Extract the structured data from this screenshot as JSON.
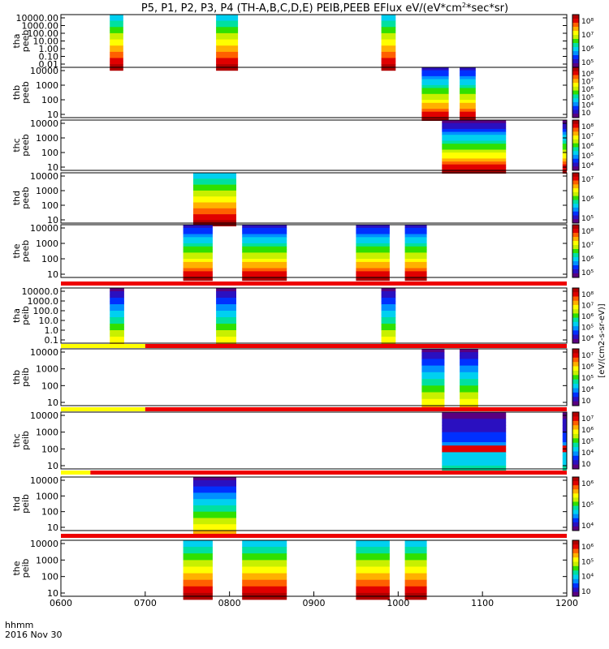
{
  "title": "P5, P1, P2, P3, P4 (TH-A,B,C,D,E) PEIB,PEEB EFlux eV/(eV*cm",
  "title_sup": "2",
  "title_tail": "*sec*sr)",
  "time_label_1": "hhmm",
  "time_label_2": "2016 Nov 30",
  "cbar_title": "[eV/(cm2-s-sr-eV)]",
  "colorscale": [
    "#5a0080",
    "#2a10c0",
    "#0030ff",
    "#0090ff",
    "#00d0f0",
    "#00e0a0",
    "#30e000",
    "#c8f000",
    "#ffff00",
    "#ffb000",
    "#ff6000",
    "#e00000",
    "#b00000"
  ],
  "chart_data": {
    "type": "heatmap",
    "x_ticks": [
      "0600",
      "0700",
      "0800",
      "0900",
      "1000",
      "1100",
      "1200"
    ],
    "x_range": [
      600,
      1200
    ],
    "panels": [
      {
        "label": "tha\npeeb",
        "yticks": [
          "10000.00",
          "1000.00",
          "100.00",
          "10.00",
          "1.00",
          "0.10",
          "0.01"
        ],
        "cticks": [
          "10⁸",
          "10⁷",
          "10⁶",
          "10⁵"
        ],
        "bar": null,
        "blocks": [
          [
            658,
            674
          ],
          [
            784,
            810
          ],
          [
            980,
            997
          ]
        ],
        "profile": "hot"
      },
      {
        "label": "thb\npeeb",
        "yticks": [
          "10000",
          "1000",
          "100",
          "10"
        ],
        "cticks": [
          "10⁸",
          "10⁷",
          "10⁶",
          "10⁵",
          "10⁴",
          "10⁳"
        ],
        "bar": null,
        "blocks": [
          [
            1028,
            1060
          ],
          [
            1073,
            1092
          ]
        ],
        "profile": "mixed"
      },
      {
        "label": "thc\npeeb",
        "yticks": [
          "10000",
          "1000",
          "100",
          "10"
        ],
        "cticks": [
          "10⁸",
          "10⁷",
          "10⁶",
          "10⁵",
          "10⁴"
        ],
        "bar": null,
        "blocks": [
          [
            1052,
            1128
          ],
          [
            1195,
            1200
          ]
        ],
        "profile": "dark"
      },
      {
        "label": "thd\npeeb",
        "yticks": [
          "10000",
          "1000",
          "100",
          "10"
        ],
        "cticks": [
          "10⁷",
          "10⁶",
          "10⁵"
        ],
        "bar": null,
        "blocks": [
          [
            757,
            808
          ]
        ],
        "profile": "hot"
      },
      {
        "label": "the\npeeb",
        "yticks": [
          "10000",
          "1000",
          "100",
          "10"
        ],
        "cticks": [
          "10⁸",
          "10⁷",
          "10⁶",
          "10⁵"
        ],
        "bar": null,
        "blocks": [
          [
            745,
            780
          ],
          [
            815,
            868
          ],
          [
            950,
            990
          ],
          [
            1008,
            1034
          ]
        ],
        "profile": "mixed"
      },
      {
        "label": "tha\npeib",
        "yticks": [
          "10000.0",
          "1000.0",
          "100.0",
          "10.0",
          "1.0",
          "0.1"
        ],
        "cticks": [
          "10⁸",
          "10⁷",
          "10⁶",
          "10⁵",
          "10⁴"
        ],
        "bar": "red",
        "blocks": [
          [
            658,
            675
          ],
          [
            784,
            808
          ],
          [
            980,
            997
          ]
        ],
        "profile": "cool"
      },
      {
        "label": "thb\npeib",
        "yticks": [
          "10000",
          "1000",
          "100",
          "10"
        ],
        "cticks": [
          "10⁷",
          "10⁶",
          "10⁵",
          "10⁴",
          "10⁳"
        ],
        "bar": "yellow-red",
        "blocks": [
          [
            1028,
            1055
          ],
          [
            1073,
            1095
          ]
        ],
        "profile": "cool"
      },
      {
        "label": "thc\npeib",
        "yticks": [
          "10000",
          "1000",
          "100",
          "10"
        ],
        "cticks": [
          "10⁷",
          "10⁶",
          "10⁵",
          "10⁴",
          "10⁳"
        ],
        "bar": "yellow-red",
        "blocks": [
          [
            1052,
            1128
          ],
          [
            1195,
            1200
          ]
        ],
        "profile": "band"
      },
      {
        "label": "thd\npeib",
        "yticks": [
          "10000",
          "1000",
          "100",
          "10"
        ],
        "cticks": [
          "10⁶",
          "10⁵",
          "10⁴"
        ],
        "bar": "yellow-red2",
        "blocks": [
          [
            757,
            808
          ]
        ],
        "profile": "cool"
      },
      {
        "label": "the\npeib",
        "yticks": [
          "10000",
          "1000",
          "100",
          "10"
        ],
        "cticks": [
          "10⁶",
          "10⁵",
          "10⁴",
          "10⁳"
        ],
        "bar": "red",
        "blocks": [
          [
            745,
            780
          ],
          [
            815,
            868
          ],
          [
            950,
            990
          ],
          [
            1008,
            1034
          ]
        ],
        "profile": "hot"
      }
    ]
  }
}
